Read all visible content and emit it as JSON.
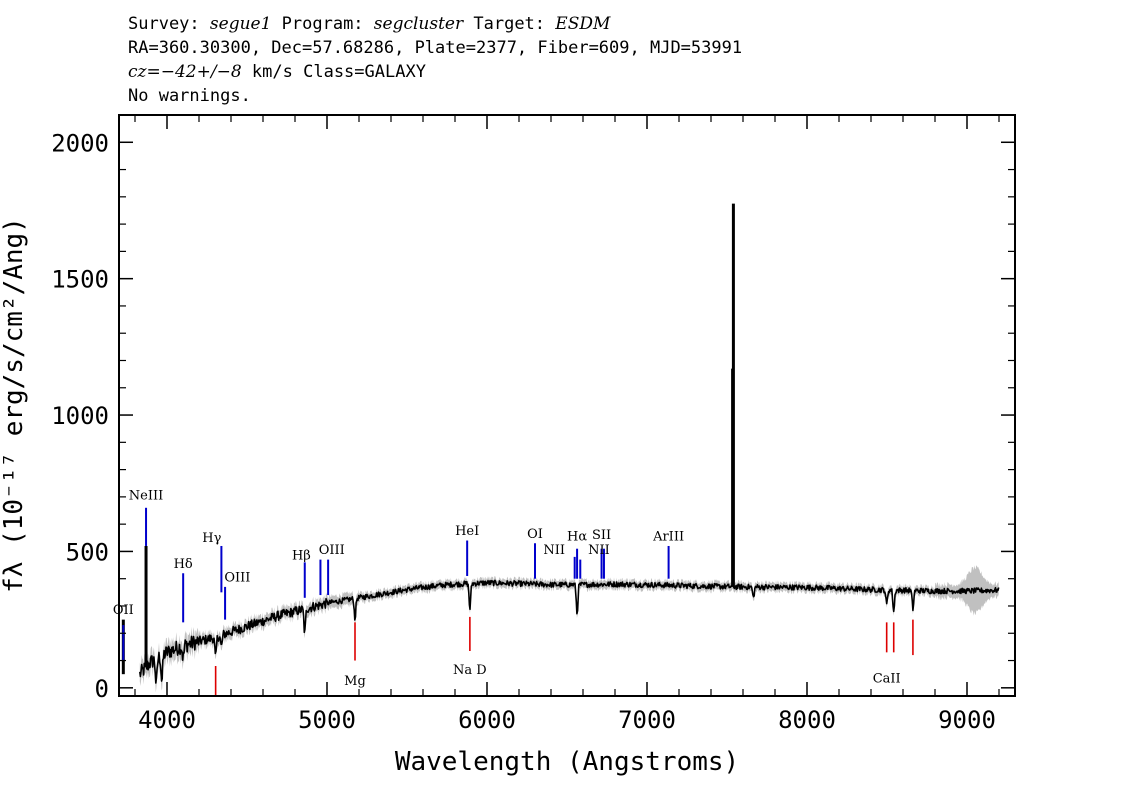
{
  "header": {
    "survey_label": "Survey:",
    "survey": "segue1",
    "program_label": "Program:",
    "program": "segcluster",
    "target_label": "Target:",
    "target": "ESDM",
    "line2": "RA=360.30300, Dec=57.68286, Plate=2377, Fiber=609, MJD=53991",
    "cz_label": "cz=",
    "cz": "−42+/−8",
    "cz_units": "km/s",
    "class": "Class=GALAXY",
    "warnings": "No warnings."
  },
  "chart_data": {
    "type": "line",
    "title": "",
    "xlabel": "Wavelength (Angstroms)",
    "ylabel": "fλ (10⁻¹⁷ erg/s/cm²/Ang)",
    "xlim": [
      3700,
      9300
    ],
    "ylim": [
      -30,
      2100
    ],
    "xticks": [
      4000,
      5000,
      6000,
      7000,
      8000,
      9000
    ],
    "xtick_labels": [
      "4000",
      "5000",
      "6000",
      "7000",
      "8000",
      "9000"
    ],
    "yticks": [
      0,
      500,
      1000,
      1500,
      2000
    ],
    "ytick_labels": [
      "0",
      "500",
      "1000",
      "1500",
      "2000"
    ],
    "colors": {
      "flux": "#000000",
      "error": "#c0c0c0",
      "emission": "#0000cc",
      "absorption": "#dd0000"
    },
    "continuum": {
      "x": [
        3830,
        3900,
        4000,
        4100,
        4200,
        4300,
        4400,
        4500,
        4600,
        4700,
        4800,
        4900,
        5000,
        5100,
        5200,
        5300,
        5400,
        5500,
        5600,
        5700,
        5800,
        5900,
        6000,
        6200,
        6400,
        6600,
        6800,
        7000,
        7200,
        7400,
        7600,
        8000,
        8400,
        8800,
        9000,
        9200
      ],
      "y": [
        50,
        95,
        130,
        155,
        170,
        185,
        205,
        225,
        245,
        265,
        280,
        295,
        310,
        320,
        330,
        340,
        350,
        360,
        368,
        375,
        380,
        382,
        385,
        382,
        378,
        378,
        380,
        378,
        375,
        372,
        370,
        368,
        360,
        355,
        355,
        358
      ]
    },
    "spikes": [
      {
        "x": 3727,
        "y": 250
      },
      {
        "x": 3869,
        "y": 520
      },
      {
        "x": 7540,
        "y": 1775
      },
      {
        "x": 7535,
        "y": 1170
      }
    ],
    "dips": [
      {
        "x": 3933,
        "y": 10
      },
      {
        "x": 3968,
        "y": 25
      },
      {
        "x": 4101,
        "y": 110
      },
      {
        "x": 4304,
        "y": 110
      },
      {
        "x": 4340,
        "y": 150
      },
      {
        "x": 4861,
        "y": 200
      },
      {
        "x": 5175,
        "y": 255
      },
      {
        "x": 5893,
        "y": 290
      },
      {
        "x": 6563,
        "y": 270
      },
      {
        "x": 7665,
        "y": 330
      },
      {
        "x": 8498,
        "y": 305
      },
      {
        "x": 8542,
        "y": 280
      },
      {
        "x": 8662,
        "y": 290
      }
    ],
    "emission_lines": [
      {
        "name": "OII",
        "x": 3727,
        "y0": 100,
        "y1": 230,
        "lx": 3727,
        "ly": 270
      },
      {
        "name": "NeIII",
        "x": 3869,
        "y0": 520,
        "y1": 660,
        "lx": 3869,
        "ly": 690
      },
      {
        "name": "Hδ",
        "x": 4101,
        "y0": 240,
        "y1": 420,
        "lx": 4101,
        "ly": 440
      },
      {
        "name": "Hγ",
        "x": 4340,
        "y0": 350,
        "y1": 520,
        "lx": 4280,
        "ly": 535
      },
      {
        "name": "OIII",
        "x": 4363,
        "y0": 250,
        "y1": 370,
        "lx": 4440,
        "ly": 390
      },
      {
        "name": "Hβ",
        "x": 4861,
        "y0": 330,
        "y1": 460,
        "lx": 4840,
        "ly": 470
      },
      {
        "name": "OIII",
        "x": 4959,
        "y0": 340,
        "y1": 470,
        "lx": 5030,
        "ly": 490
      },
      {
        "name": "OIII",
        "x": 5007,
        "y0": 340,
        "y1": 470,
        "lx": null,
        "ly": null
      },
      {
        "name": "HeI",
        "x": 5876,
        "y0": 410,
        "y1": 540,
        "lx": 5876,
        "ly": 560
      },
      {
        "name": "OI",
        "x": 6300,
        "y0": 400,
        "y1": 530,
        "lx": 6300,
        "ly": 550
      },
      {
        "name": "NII",
        "x": 6548,
        "y0": 400,
        "y1": 480,
        "lx": 6420,
        "ly": 490
      },
      {
        "name": "Hα",
        "x": 6563,
        "y0": 400,
        "y1": 510,
        "lx": 6563,
        "ly": 540
      },
      {
        "name": "NII",
        "x": 6583,
        "y0": 400,
        "y1": 470,
        "lx": 6700,
        "ly": 490
      },
      {
        "name": "SII",
        "x": 6716,
        "y0": 400,
        "y1": 510,
        "lx": 6716,
        "ly": 545
      },
      {
        "name": "SII",
        "x": 6731,
        "y0": 400,
        "y1": 510,
        "lx": null,
        "ly": null
      },
      {
        "name": "ArIII",
        "x": 7135,
        "y0": 400,
        "y1": 520,
        "lx": 7135,
        "ly": 540
      }
    ],
    "absorption_lines": [
      {
        "name": "",
        "x": 4304,
        "y0": -60,
        "y1": 80,
        "lx": null,
        "ly": null
      },
      {
        "name": "Mg",
        "x": 5175,
        "y0": 100,
        "y1": 240,
        "lx": 5175,
        "ly": 10
      },
      {
        "name": "Na D",
        "x": 5893,
        "y0": 135,
        "y1": 260,
        "lx": 5893,
        "ly": 50
      },
      {
        "name": "CaII",
        "x": 8498,
        "y0": 130,
        "y1": 240,
        "lx": 8498,
        "ly": 20
      },
      {
        "name": "",
        "x": 8542,
        "y0": 130,
        "y1": 240,
        "lx": null,
        "ly": null
      },
      {
        "name": "",
        "x": 8662,
        "y0": 120,
        "y1": 250,
        "lx": null,
        "ly": null
      }
    ]
  }
}
